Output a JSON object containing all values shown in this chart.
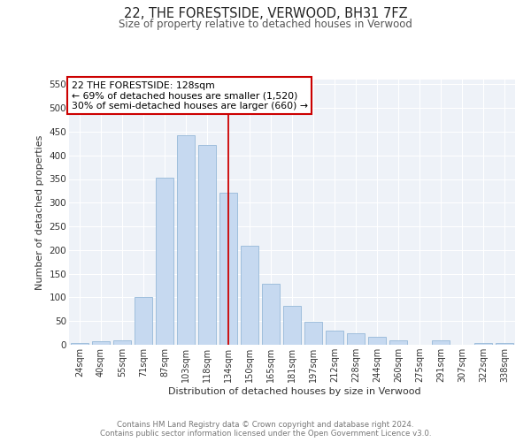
{
  "title1": "22, THE FORESTSIDE, VERWOOD, BH31 7FZ",
  "title2": "Size of property relative to detached houses in Verwood",
  "xlabel": "Distribution of detached houses by size in Verwood",
  "ylabel": "Number of detached properties",
  "categories": [
    "24sqm",
    "40sqm",
    "55sqm",
    "71sqm",
    "87sqm",
    "103sqm",
    "118sqm",
    "134sqm",
    "150sqm",
    "165sqm",
    "181sqm",
    "197sqm",
    "212sqm",
    "228sqm",
    "244sqm",
    "260sqm",
    "275sqm",
    "291sqm",
    "307sqm",
    "322sqm",
    "338sqm"
  ],
  "values": [
    3,
    7,
    10,
    101,
    353,
    443,
    421,
    321,
    210,
    128,
    83,
    49,
    29,
    24,
    17,
    10,
    0,
    10,
    0,
    3,
    3
  ],
  "bar_color": "#c6d9f0",
  "bar_edge_color": "#95b8d8",
  "vline_x": 7,
  "vline_color": "#cc0000",
  "annotation_title": "22 THE FORESTSIDE: 128sqm",
  "annotation_line1": "← 69% of detached houses are smaller (1,520)",
  "annotation_line2": "30% of semi-detached houses are larger (660) →",
  "annotation_box_color": "#cc0000",
  "ylim": [
    0,
    560
  ],
  "yticks": [
    0,
    50,
    100,
    150,
    200,
    250,
    300,
    350,
    400,
    450,
    500,
    550
  ],
  "footer1": "Contains HM Land Registry data © Crown copyright and database right 2024.",
  "footer2": "Contains public sector information licensed under the Open Government Licence v3.0.",
  "plot_bg_color": "#eef2f8"
}
